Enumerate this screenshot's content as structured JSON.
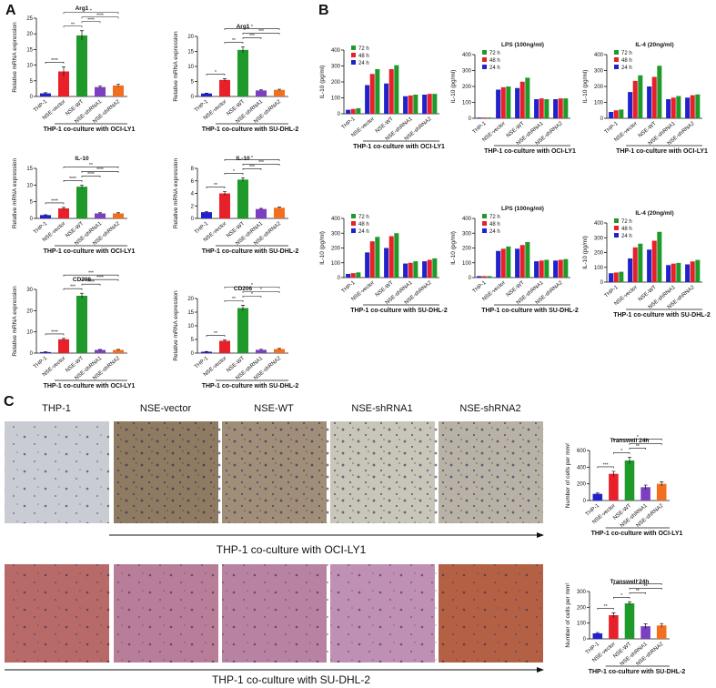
{
  "panel_labels": [
    "A",
    "B",
    "C"
  ],
  "images": {
    "columns": [
      "THP-1",
      "NSE-vector",
      "NSE-WT",
      "NSE-shRNA1",
      "NSE-shRNA2"
    ],
    "rows": [
      "THP-1 co-culture with OCI-LY1",
      "THP-1 co-culture with SU-DHL-2"
    ]
  },
  "chart_data": [
    {
      "type": "bar",
      "title": "Arg1",
      "ylabel": "Relative mRNA expression",
      "categories": [
        "THP-1",
        "NSE-vector",
        "NSE-WT",
        "NSE-shRNA1",
        "NSE-shRNA2"
      ],
      "values": [
        1,
        8,
        19.5,
        3,
        3.5
      ],
      "errors": [
        0.2,
        1.5,
        1.5,
        0.4,
        0.4
      ],
      "colors": [
        "#2222cc",
        "#e8202a",
        "#1f9a2a",
        "#7b3fbf",
        "#f07020"
      ],
      "ylim": [
        0,
        25
      ],
      "yticks": [
        0,
        5,
        10,
        15,
        20,
        25
      ],
      "xlabel": "THP-1 co-culture with OCI-LY1",
      "brackets": [
        {
          "pair": [
            0,
            1
          ],
          "label": "****"
        },
        {
          "pair": [
            1,
            2
          ],
          "label": "**"
        },
        {
          "pair": [
            2,
            3
          ],
          "label": "****"
        },
        {
          "pair": [
            2,
            4
          ],
          "label": "****"
        },
        {
          "pair": [
            1,
            4
          ],
          "label": "*"
        }
      ]
    },
    {
      "type": "bar",
      "title": "Arg1",
      "ylabel": "Relative mRNA expression",
      "categories": [
        "THP-1",
        "NSE-vector",
        "NSE-WT",
        "NSE-shRNA1",
        "NSE-shRNA2"
      ],
      "values": [
        1,
        5.5,
        15.5,
        2,
        2.2
      ],
      "errors": [
        0.1,
        0.4,
        1,
        0.2,
        0.2
      ],
      "colors": [
        "#2222cc",
        "#e8202a",
        "#1f9a2a",
        "#7b3fbf",
        "#f07020"
      ],
      "ylim": [
        0,
        20
      ],
      "yticks": [
        0,
        5,
        10,
        15,
        20
      ],
      "xlabel": "THP-1 co-culture with SU-DHL-2",
      "brackets": [
        {
          "pair": [
            0,
            1
          ],
          "label": "*"
        },
        {
          "pair": [
            1,
            2
          ],
          "label": "**"
        },
        {
          "pair": [
            2,
            3
          ],
          "label": "***"
        },
        {
          "pair": [
            2,
            4
          ],
          "label": "***"
        },
        {
          "pair": [
            1,
            4
          ],
          "label": "*"
        }
      ]
    },
    {
      "type": "bar",
      "title": "IL-10",
      "ylabel": "Relative mRNA expression",
      "categories": [
        "THP-1",
        "NSE-vector",
        "NSE-WT",
        "NSE-shRNA1",
        "NSE-shRNA2"
      ],
      "values": [
        1,
        3,
        9.5,
        1.5,
        1.5
      ],
      "errors": [
        0.1,
        0.3,
        0.5,
        0.2,
        0.2
      ],
      "colors": [
        "#2222cc",
        "#e8202a",
        "#1f9a2a",
        "#7b3fbf",
        "#f07020"
      ],
      "ylim": [
        0,
        15
      ],
      "yticks": [
        0,
        5,
        10,
        15
      ],
      "xlabel": "THP-1 co-culture with OCI-LY1",
      "brackets": [
        {
          "pair": [
            0,
            1
          ],
          "label": "****"
        },
        {
          "pair": [
            1,
            2
          ],
          "label": "****"
        },
        {
          "pair": [
            2,
            3
          ],
          "label": "****"
        },
        {
          "pair": [
            2,
            4
          ],
          "label": "****"
        },
        {
          "pair": [
            1,
            4
          ],
          "label": "**"
        }
      ]
    },
    {
      "type": "bar",
      "title": "IL-10",
      "ylabel": "Relative mRNA expression",
      "categories": [
        "THP-1",
        "NSE-vector",
        "NSE-WT",
        "NSE-shRNA1",
        "NSE-shRNA2"
      ],
      "values": [
        1,
        4,
        6.2,
        1.5,
        1.7
      ],
      "errors": [
        0.1,
        0.3,
        0.3,
        0.1,
        0.1
      ],
      "colors": [
        "#2222cc",
        "#e8202a",
        "#1f9a2a",
        "#7b3fbf",
        "#f07020"
      ],
      "ylim": [
        0,
        8
      ],
      "yticks": [
        0,
        2,
        4,
        6,
        8
      ],
      "xlabel": "THP-1 co-culture with SU-DHL-2",
      "brackets": [
        {
          "pair": [
            0,
            1
          ],
          "label": "**"
        },
        {
          "pair": [
            1,
            2
          ],
          "label": "*"
        },
        {
          "pair": [
            2,
            3
          ],
          "label": "***"
        },
        {
          "pair": [
            2,
            4
          ],
          "label": "***"
        },
        {
          "pair": [
            1,
            4
          ],
          "label": "*"
        }
      ]
    },
    {
      "type": "bar",
      "title": "CD206",
      "ylabel": "Relative mRNA expression",
      "categories": [
        "THP-1",
        "NSE-vector",
        "NSE-WT",
        "NSE-shRNA1",
        "NSE-shRNA2"
      ],
      "values": [
        0.5,
        6.5,
        27,
        1.5,
        1.5
      ],
      "errors": [
        0.1,
        0.4,
        1.2,
        0.2,
        0.2
      ],
      "colors": [
        "#2222cc",
        "#e8202a",
        "#1f9a2a",
        "#7b3fbf",
        "#f07020"
      ],
      "ylim": [
        0,
        30
      ],
      "yticks": [
        0,
        10,
        20,
        30
      ],
      "xlabel": "THP-1 co-culture with OCI-LY1",
      "brackets": [
        {
          "pair": [
            0,
            1
          ],
          "label": "****"
        },
        {
          "pair": [
            1,
            2
          ],
          "label": "***"
        },
        {
          "pair": [
            2,
            3
          ],
          "label": "****"
        },
        {
          "pair": [
            2,
            4
          ],
          "label": "****"
        },
        {
          "pair": [
            1,
            4
          ],
          "label": "***"
        }
      ]
    },
    {
      "type": "bar",
      "title": "CD206",
      "ylabel": "Relative mRNA expression",
      "categories": [
        "THP-1",
        "NSE-vector",
        "NSE-WT",
        "NSE-shRNA1",
        "NSE-shRNA2"
      ],
      "values": [
        0.5,
        4.5,
        16.5,
        1.2,
        1.5
      ],
      "errors": [
        0.1,
        0.3,
        1,
        0.2,
        0.2
      ],
      "colors": [
        "#2222cc",
        "#e8202a",
        "#1f9a2a",
        "#7b3fbf",
        "#f07020"
      ],
      "ylim": [
        0,
        20
      ],
      "yticks": [
        0,
        5,
        10,
        15,
        20
      ],
      "xlabel": "THP-1 co-culture with SU-DHL-2",
      "brackets": [
        {
          "pair": [
            0,
            1
          ],
          "label": "**"
        },
        {
          "pair": [
            1,
            2
          ],
          "label": "**"
        },
        {
          "pair": [
            2,
            3
          ],
          "label": "*"
        },
        {
          "pair": [
            2,
            4
          ],
          "label": "*"
        },
        {
          "pair": [
            1,
            4
          ],
          "label": "*"
        }
      ]
    },
    {
      "type": "grouped-bar",
      "ylabel": "IL-10 (pg/ml)",
      "categories": [
        "THP-1",
        "NSE-vector",
        "NSE-WT",
        "NSE-shRNA1",
        "NSE-shRNA2"
      ],
      "series": [
        {
          "name": "72 h",
          "color": "#1f9a2a",
          "values": [
            35,
            280,
            305,
            120,
            125
          ]
        },
        {
          "name": "48 h",
          "color": "#e8202a",
          "values": [
            30,
            250,
            280,
            115,
            125
          ]
        },
        {
          "name": "24 h",
          "color": "#2222cc",
          "values": [
            25,
            180,
            190,
            110,
            120
          ]
        }
      ],
      "ylim": [
        0,
        400
      ],
      "yticks": [
        0,
        100,
        200,
        300,
        400
      ],
      "xlabel": "THP-1 co-culture with OCI-LY1"
    },
    {
      "type": "grouped-bar",
      "title": "LPS (100ng/ml)",
      "ylabel": "IL-10 (pg/ml)",
      "categories": [
        "THP-1",
        "NSE-vector",
        "NSE-WT",
        "NSE-shRNA1",
        "NSE-shRNA2"
      ],
      "series": [
        {
          "name": "72 h",
          "color": "#1f9a2a",
          "values": [
            5,
            200,
            255,
            120,
            125
          ]
        },
        {
          "name": "48 h",
          "color": "#e8202a",
          "values": [
            5,
            195,
            230,
            125,
            125
          ]
        },
        {
          "name": "24 h",
          "color": "#2222cc",
          "values": [
            5,
            180,
            190,
            120,
            120
          ]
        }
      ],
      "ylim": [
        0,
        400
      ],
      "yticks": [
        0,
        100,
        200,
        300,
        400
      ],
      "xlabel": "THP-1 co-culture with OCI-LY1"
    },
    {
      "type": "grouped-bar",
      "title": "IL-4 (20ng/ml)",
      "ylabel": "IL-10 (pg/ml)",
      "categories": [
        "THP-1",
        "NSE-vector",
        "NSE-WT",
        "NSE-shRNA1",
        "NSE-shRNA2"
      ],
      "series": [
        {
          "name": "72 h",
          "color": "#1f9a2a",
          "values": [
            55,
            270,
            330,
            140,
            150
          ]
        },
        {
          "name": "48 h",
          "color": "#e8202a",
          "values": [
            50,
            235,
            260,
            130,
            145
          ]
        },
        {
          "name": "24 h",
          "color": "#2222cc",
          "values": [
            40,
            165,
            200,
            120,
            130
          ]
        }
      ],
      "ylim": [
        0,
        400
      ],
      "yticks": [
        0,
        100,
        200,
        300,
        400
      ],
      "xlabel": "THP-1 co-culture with OCI-LY1"
    },
    {
      "type": "grouped-bar",
      "ylabel": "IL-10 (pg/ml)",
      "categories": [
        "THP-1",
        "NSE-vector",
        "NSE-WT",
        "NSE-shRNA1",
        "NSE-shRNA2"
      ],
      "series": [
        {
          "name": "72 h",
          "color": "#1f9a2a",
          "values": [
            35,
            275,
            300,
            110,
            130
          ]
        },
        {
          "name": "48 h",
          "color": "#e8202a",
          "values": [
            30,
            245,
            280,
            100,
            120
          ]
        },
        {
          "name": "24 h",
          "color": "#2222cc",
          "values": [
            25,
            170,
            200,
            95,
            110
          ]
        }
      ],
      "ylim": [
        0,
        400
      ],
      "yticks": [
        0,
        100,
        200,
        300,
        400
      ],
      "xlabel": "THP-1 co-culture with SU-DHL-2"
    },
    {
      "type": "grouped-bar",
      "title": "LPS (100ng/ml)",
      "ylabel": "IL-10 (pg/ml)",
      "categories": [
        "THP-1",
        "NSE-vector",
        "NSE-WT",
        "NSE-shRNA1",
        "NSE-shRNA2"
      ],
      "series": [
        {
          "name": "72 h",
          "color": "#1f9a2a",
          "values": [
            10,
            210,
            240,
            120,
            125
          ]
        },
        {
          "name": "48 h",
          "color": "#e8202a",
          "values": [
            10,
            195,
            220,
            115,
            120
          ]
        },
        {
          "name": "24 h",
          "color": "#2222cc",
          "values": [
            10,
            180,
            195,
            110,
            115
          ]
        }
      ],
      "ylim": [
        0,
        400
      ],
      "yticks": [
        0,
        100,
        200,
        300,
        400
      ],
      "xlabel": "THP-1 co-culture with SU-DHL-2"
    },
    {
      "type": "grouped-bar",
      "title": "IL-4 (20ng/ml)",
      "ylabel": "IL-10 (pg/ml)",
      "categories": [
        "THP-1",
        "NSE-vector",
        "NSE-WT",
        "NSE-shRNA1",
        "NSE-shRNA2"
      ],
      "series": [
        {
          "name": "72 h",
          "color": "#1f9a2a",
          "values": [
            70,
            260,
            340,
            130,
            150
          ]
        },
        {
          "name": "48 h",
          "color": "#e8202a",
          "values": [
            65,
            235,
            280,
            125,
            140
          ]
        },
        {
          "name": "24 h",
          "color": "#2222cc",
          "values": [
            60,
            160,
            220,
            115,
            120
          ]
        }
      ],
      "ylim": [
        0,
        400
      ],
      "yticks": [
        0,
        100,
        200,
        300,
        400
      ],
      "xlabel": "THP-1 co-culture with SU-DHL-2"
    },
    {
      "type": "bar",
      "title": "Transwell 24h",
      "ylabel": "Number of cells per mm²",
      "categories": [
        "THP-1",
        "NSE-vector",
        "NSE-WT",
        "NSE-shRNA1",
        "NSE-shRNA2"
      ],
      "values": [
        80,
        320,
        480,
        160,
        200
      ],
      "errors": [
        10,
        30,
        40,
        25,
        25
      ],
      "colors": [
        "#2222cc",
        "#e8202a",
        "#1f9a2a",
        "#7b3fbf",
        "#f07020"
      ],
      "ylim": [
        0,
        600
      ],
      "yticks": [
        0,
        200,
        400,
        600
      ],
      "xlabel": "THP-1 co-culture with OCI-LY1",
      "brackets": [
        {
          "pair": [
            0,
            1
          ],
          "label": "***"
        },
        {
          "pair": [
            1,
            2
          ],
          "label": "*"
        },
        {
          "pair": [
            2,
            3
          ],
          "label": "**"
        },
        {
          "pair": [
            2,
            4
          ],
          "label": "**"
        },
        {
          "pair": [
            1,
            4
          ],
          "label": "*"
        }
      ]
    },
    {
      "type": "bar",
      "title": "Transwell 24h",
      "ylabel": "Number of cells per mm²",
      "categories": [
        "THP-1",
        "NSE-vector",
        "NSE-WT",
        "NSE-shRNA1",
        "NSE-shRNA2"
      ],
      "values": [
        35,
        150,
        225,
        80,
        85
      ],
      "errors": [
        5,
        15,
        10,
        15,
        12
      ],
      "colors": [
        "#2222cc",
        "#e8202a",
        "#1f9a2a",
        "#7b3fbf",
        "#f07020"
      ],
      "ylim": [
        0,
        300
      ],
      "yticks": [
        0,
        100,
        200,
        300
      ],
      "xlabel": "THP-1 co-culture with SU-DHL-2",
      "brackets": [
        {
          "pair": [
            0,
            1
          ],
          "label": "**"
        },
        {
          "pair": [
            1,
            2
          ],
          "label": "*"
        },
        {
          "pair": [
            2,
            3
          ],
          "label": "**"
        },
        {
          "pair": [
            2,
            4
          ],
          "label": "**"
        },
        {
          "pair": [
            1,
            4
          ],
          "label": "*"
        }
      ]
    }
  ]
}
